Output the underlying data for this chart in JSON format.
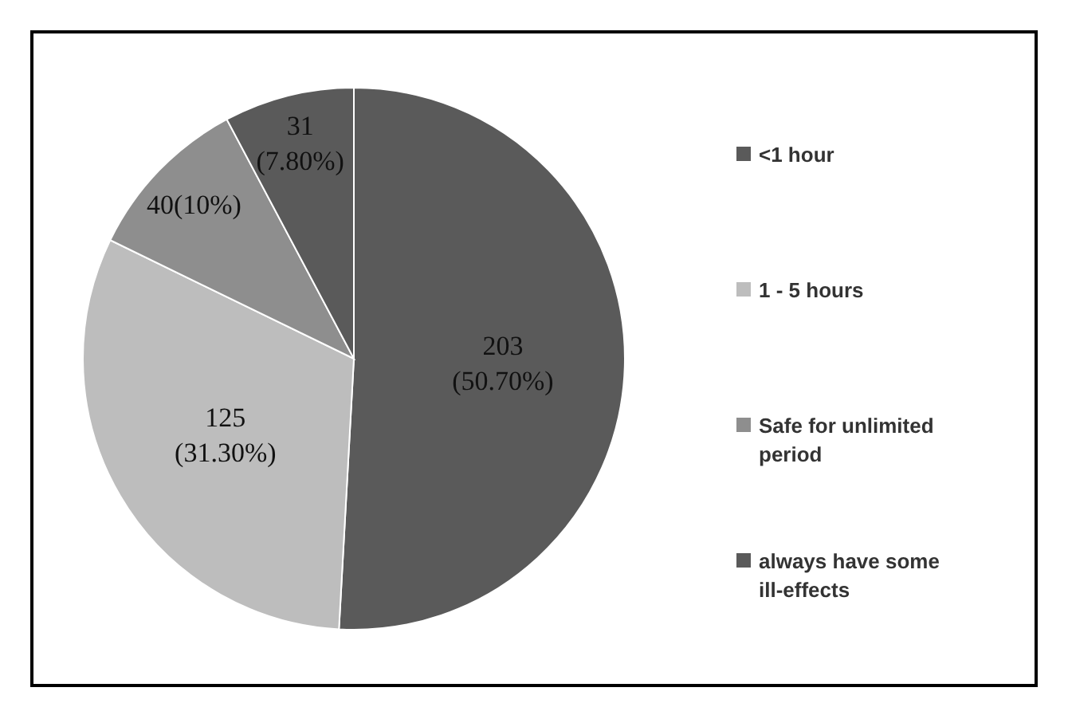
{
  "chart_data": {
    "type": "pie",
    "categories": [
      "<1 hour",
      "1 - 5 hours",
      "Safe for unlimited period",
      "always have some ill-effects"
    ],
    "values": [
      203,
      125,
      40,
      31
    ],
    "colors": [
      "#5a5a5a",
      "#bdbdbd",
      "#8e8e8e",
      "#5a5a5a"
    ],
    "value_labels": [
      "203\n(50.70%)",
      "125\n(31.30%)",
      "40(10%)",
      "31\n(7.80%)"
    ],
    "legend": "right"
  }
}
